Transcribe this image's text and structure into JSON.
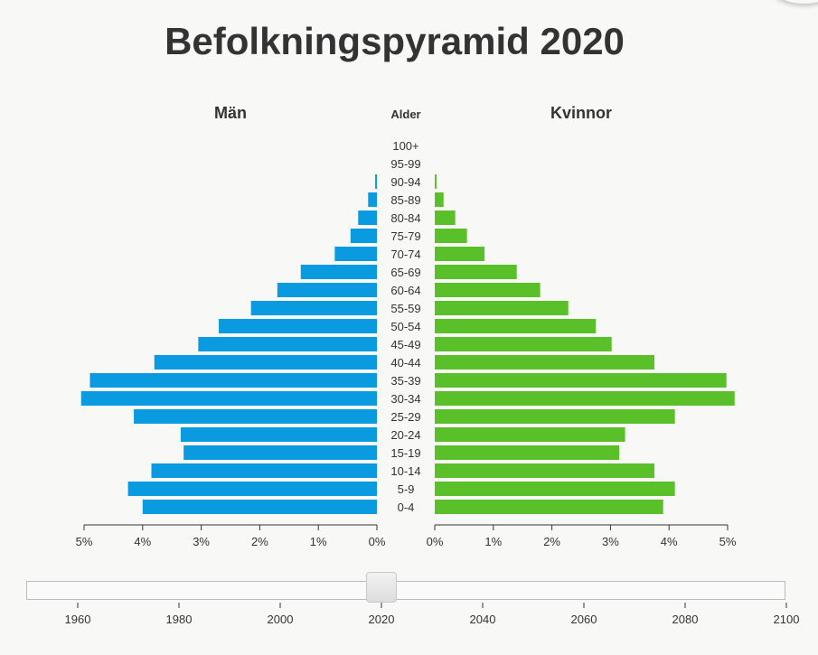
{
  "title": "Befolkningspyramid 2020",
  "chart_data": {
    "type": "bar",
    "orientation": "horizontal-pyramid",
    "title": "Befolkningspyramid 2020",
    "left_label": "Män",
    "right_label": "Kvinnor",
    "center_label": "Alder",
    "categories": [
      "100+",
      "95-99",
      "90-94",
      "85-89",
      "80-84",
      "75-79",
      "70-74",
      "65-69",
      "60-64",
      "55-59",
      "50-54",
      "45-49",
      "40-44",
      "35-39",
      "30-34",
      "25-29",
      "20-24",
      "15-19",
      "10-14",
      "5-9",
      "0-4"
    ],
    "series": [
      {
        "name": "Män",
        "color": "#0a9ae0",
        "values": [
          0.0,
          0.0,
          0.03,
          0.15,
          0.32,
          0.45,
          0.72,
          1.3,
          1.7,
          2.15,
          2.7,
          3.05,
          3.8,
          4.9,
          5.05,
          4.15,
          3.35,
          3.3,
          3.85,
          4.25,
          4.0
        ]
      },
      {
        "name": "Kvinnor",
        "color": "#5ac02a",
        "values": [
          0.0,
          0.0,
          0.03,
          0.15,
          0.35,
          0.55,
          0.85,
          1.4,
          1.8,
          2.28,
          2.75,
          3.02,
          3.75,
          4.98,
          5.12,
          4.1,
          3.25,
          3.15,
          3.75,
          4.1,
          3.9
        ]
      }
    ],
    "xlim": [
      0,
      5
    ],
    "left_ticks": [
      "5%",
      "4%",
      "3%",
      "2%",
      "1%",
      "0%"
    ],
    "right_ticks": [
      "0%",
      "1%",
      "2%",
      "3%",
      "4%",
      "5%"
    ]
  },
  "slider": {
    "value": 2020,
    "min": 1950,
    "max": 2100,
    "ticks": [
      "1960",
      "1980",
      "2000",
      "2020",
      "2040",
      "2060",
      "2080",
      "2100"
    ]
  }
}
